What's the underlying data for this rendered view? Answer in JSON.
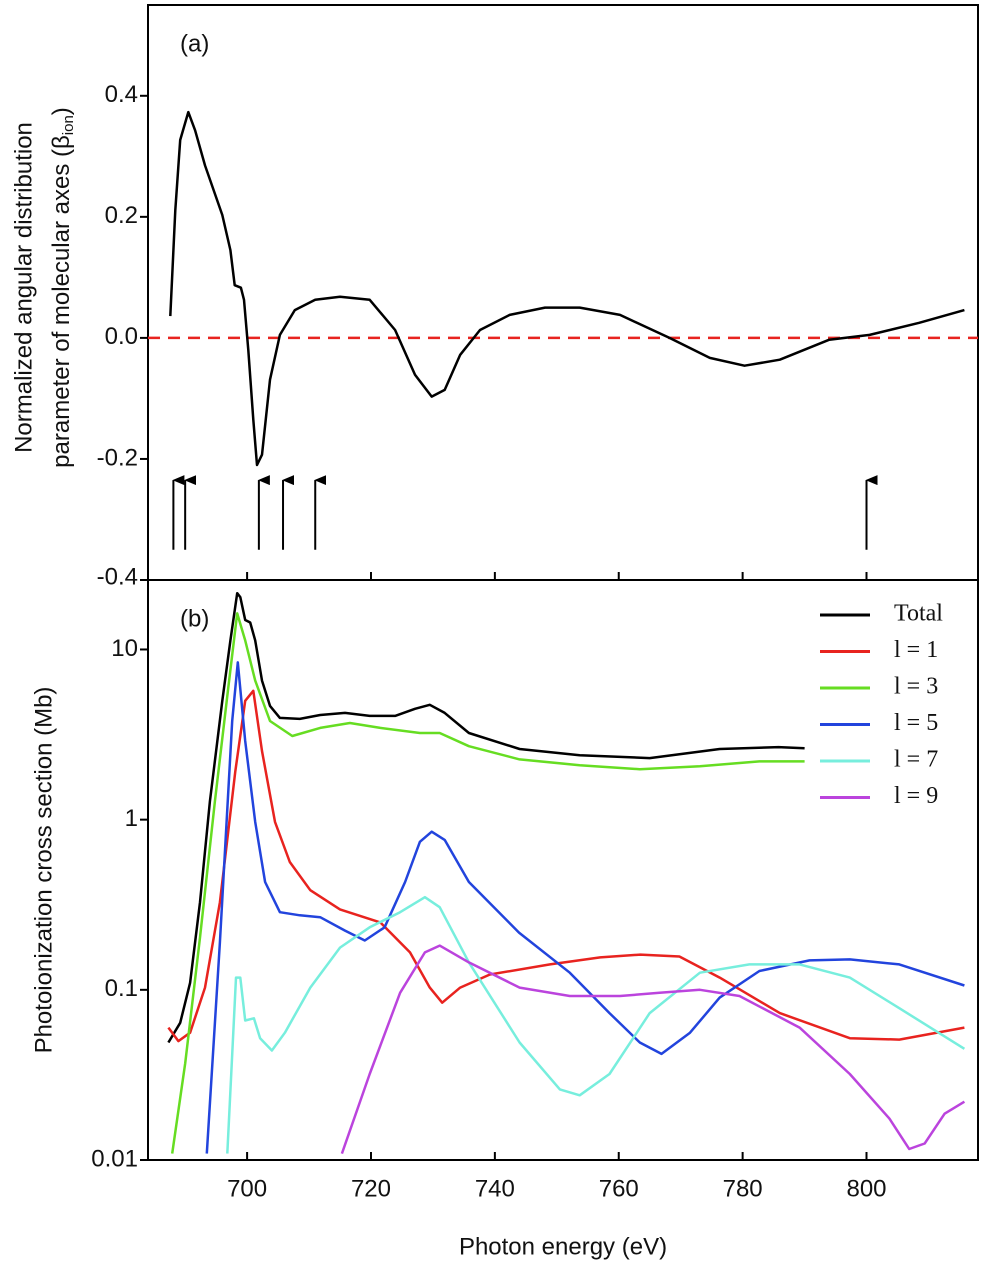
{
  "chart_data": [
    {
      "type": "line",
      "annotation": "(a)",
      "ylabel": [
        "Normalized angular distribution",
        "parameter of molecular axes (β",
        "ion",
        ")"
      ],
      "xlim": [
        684,
        818
      ],
      "ylim": [
        -0.4,
        0.55
      ],
      "yticks": [
        -0.4,
        -0.2,
        {
          "value": 0,
          "label": "0.0"
        },
        0.2,
        0.4
      ],
      "reference_line": {
        "y": 0,
        "color": "#e8231f",
        "dashed": true
      },
      "arrows": {
        "x": [
          688.1,
          690.0,
          701.9,
          705.8,
          711.0,
          800
        ],
        "y_from": -0.35,
        "y_to": -0.235,
        "color": "#000000"
      },
      "series": [
        {
          "color": "#000000",
          "x": [
            687.6,
            688.4,
            689.2,
            690.5,
            691.6,
            693.2,
            696.0,
            697.3,
            698.0,
            699.0,
            699.5,
            700.2,
            701.0,
            701.6,
            702.4,
            703.7,
            705.3,
            707.7,
            711.0,
            715.0,
            719.8,
            723.9,
            727.1,
            729.8,
            731.9,
            734.4,
            737.6,
            742.4,
            748.1,
            753.7,
            760.2,
            768.2,
            774.7,
            780.3,
            786.0,
            794.0,
            800.5,
            808.5,
            815.8
          ],
          "values": [
            0.036,
            0.211,
            0.327,
            0.373,
            0.343,
            0.285,
            0.203,
            0.145,
            0.087,
            0.083,
            0.063,
            -0.02,
            -0.135,
            -0.21,
            -0.193,
            -0.069,
            0.005,
            0.046,
            0.063,
            0.068,
            0.063,
            0.013,
            -0.061,
            -0.097,
            -0.086,
            -0.028,
            0.013,
            0.038,
            0.05,
            0.05,
            0.038,
            0.0,
            -0.033,
            -0.046,
            -0.036,
            -0.003,
            0.005,
            0.025,
            0.046
          ]
        }
      ]
    },
    {
      "type": "line",
      "annotation": "(b)",
      "log_y": true,
      "legend": "upper right",
      "ylabel": "Photoionization cross section (Mb)",
      "xlabel": "Photon energy (eV)",
      "xlim": [
        684,
        818
      ],
      "ylim": [
        0.01,
        25.6
      ],
      "xticks": [
        700,
        720,
        740,
        760,
        780,
        800
      ],
      "yticks": [
        0.01,
        0.1,
        1,
        10
      ],
      "series": [
        {
          "name": "Total",
          "color": "#000000",
          "x": [
            687.3,
            689.2,
            690.8,
            692.4,
            694.0,
            696.0,
            697.3,
            698.4,
            698.9,
            699.7,
            700.5,
            701.3,
            702.4,
            703.7,
            705.3,
            708.5,
            711.8,
            715.8,
            719.8,
            723.9,
            727.1,
            729.5,
            731.9,
            735.8,
            744.0,
            753.7,
            765.0,
            776.3,
            785.8,
            790.0
          ],
          "values": [
            0.049,
            0.064,
            0.11,
            0.327,
            1.28,
            4.99,
            11.3,
            21.4,
            20.3,
            14.9,
            14.4,
            11.3,
            6.56,
            4.66,
            3.96,
            3.91,
            4.12,
            4.24,
            4.07,
            4.07,
            4.48,
            4.73,
            4.24,
            3.23,
            2.6,
            2.39,
            2.3,
            2.6,
            2.67,
            2.63
          ]
        },
        {
          "name": "l = 1",
          "color": "#e8231f",
          "x": [
            687.3,
            688.9,
            690.8,
            693.2,
            695.6,
            698.1,
            699.7,
            701.0,
            702.4,
            704.5,
            706.9,
            710.2,
            715.0,
            721.5,
            726.3,
            729.5,
            731.5,
            734.4,
            739.2,
            748.9,
            757.0,
            763.5,
            769.8,
            776.3,
            786.0,
            797.3,
            805.3,
            815.8
          ],
          "values": [
            0.06,
            0.05,
            0.056,
            0.103,
            0.327,
            1.92,
            4.99,
            5.72,
            2.53,
            0.97,
            0.564,
            0.385,
            0.297,
            0.249,
            0.166,
            0.103,
            0.084,
            0.103,
            0.123,
            0.141,
            0.155,
            0.161,
            0.157,
            0.118,
            0.073,
            0.052,
            0.051,
            0.06
          ]
        },
        {
          "name": "l = 3",
          "color": "#66dd22",
          "x": [
            687.9,
            690.0,
            692.4,
            694.8,
            696.9,
            698.4,
            699.7,
            701.3,
            703.7,
            707.3,
            711.8,
            716.6,
            721.5,
            727.9,
            731.1,
            735.8,
            744.0,
            753.7,
            763.4,
            773.1,
            782.7,
            790.0
          ],
          "values": [
            0.0109,
            0.037,
            0.203,
            1.28,
            5.72,
            16.3,
            11.3,
            6.56,
            3.8,
            3.1,
            3.46,
            3.7,
            3.46,
            3.23,
            3.23,
            2.7,
            2.26,
            2.09,
            1.98,
            2.06,
            2.2,
            2.2
          ]
        },
        {
          "name": "l = 5",
          "color": "#2244dd",
          "x": [
            693.5,
            695.6,
            697.6,
            698.5,
            699.7,
            701.3,
            702.9,
            705.3,
            708.5,
            711.8,
            715.8,
            719.0,
            722.2,
            725.5,
            727.9,
            729.8,
            731.9,
            735.8,
            743.9,
            752.1,
            758.5,
            763.4,
            766.9,
            771.5,
            776.3,
            782.7,
            790.8,
            797.3,
            805.3,
            815.8
          ],
          "values": [
            0.0109,
            0.19,
            3.8,
            8.4,
            2.9,
            0.97,
            0.43,
            0.286,
            0.274,
            0.267,
            0.223,
            0.195,
            0.233,
            0.43,
            0.741,
            0.85,
            0.76,
            0.43,
            0.217,
            0.126,
            0.073,
            0.049,
            0.042,
            0.056,
            0.09,
            0.129,
            0.149,
            0.151,
            0.141,
            0.106
          ]
        },
        {
          "name": "l = 7",
          "color": "#77eedd",
          "x": [
            696.8,
            698.2,
            698.9,
            699.7,
            701.1,
            702.1,
            704.0,
            706.1,
            710.2,
            715.0,
            719.8,
            724.7,
            728.7,
            731.1,
            735.8,
            744.0,
            750.5,
            753.7,
            758.5,
            765.0,
            773.1,
            781.1,
            789.2,
            797.3,
            805.3,
            815.8
          ],
          "values": [
            0.0109,
            0.118,
            0.118,
            0.066,
            0.068,
            0.052,
            0.044,
            0.056,
            0.103,
            0.177,
            0.233,
            0.286,
            0.35,
            0.306,
            0.145,
            0.049,
            0.026,
            0.024,
            0.032,
            0.073,
            0.126,
            0.141,
            0.141,
            0.118,
            0.078,
            0.045
          ]
        },
        {
          "name": "l = 9",
          "color": "#bb44dd",
          "x": [
            715.3,
            719.8,
            724.7,
            728.7,
            731.1,
            735.8,
            744.0,
            752.1,
            760.2,
            766.6,
            773.1,
            779.5,
            789.2,
            797.3,
            803.7,
            806.9,
            809.4,
            812.6,
            815.8
          ],
          "values": [
            0.0109,
            0.032,
            0.096,
            0.166,
            0.182,
            0.145,
            0.103,
            0.092,
            0.092,
            0.096,
            0.1,
            0.092,
            0.06,
            0.032,
            0.0175,
            0.0116,
            0.0125,
            0.0187,
            0.022
          ]
        }
      ]
    }
  ]
}
